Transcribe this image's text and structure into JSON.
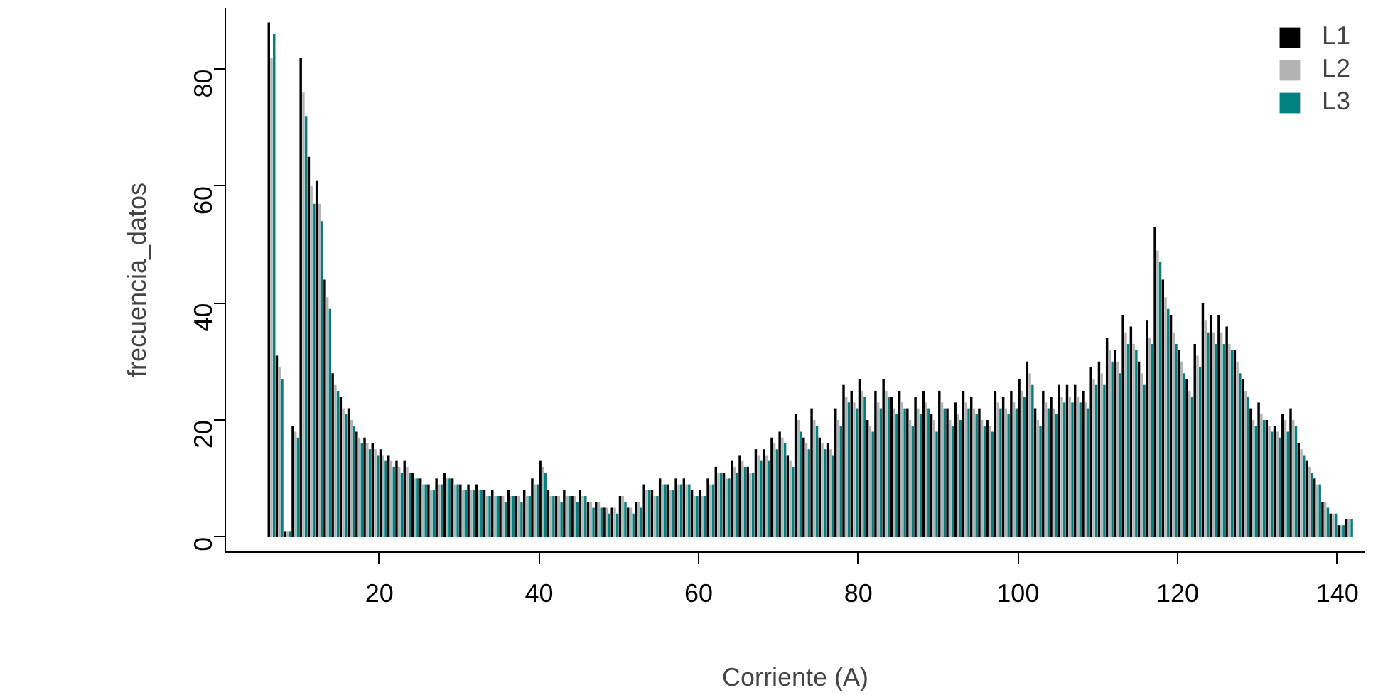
{
  "chart_data": {
    "type": "histogram",
    "xlabel": "Corriente (A)",
    "ylabel": "frecuencia_datos",
    "bins": [
      6,
      7,
      8,
      9,
      10,
      11,
      12,
      13,
      14,
      15,
      16,
      17,
      18,
      19,
      20,
      21,
      22,
      23,
      24,
      25,
      26,
      27,
      28,
      29,
      30,
      31,
      32,
      33,
      34,
      35,
      36,
      37,
      38,
      39,
      40,
      41,
      42,
      43,
      44,
      45,
      46,
      47,
      48,
      49,
      50,
      51,
      52,
      53,
      54,
      55,
      56,
      57,
      58,
      59,
      60,
      61,
      62,
      63,
      64,
      65,
      66,
      67,
      68,
      69,
      70,
      71,
      72,
      73,
      74,
      75,
      76,
      77,
      78,
      79,
      80,
      81,
      82,
      83,
      84,
      85,
      86,
      87,
      88,
      89,
      90,
      91,
      92,
      93,
      94,
      95,
      96,
      97,
      98,
      99,
      100,
      101,
      102,
      103,
      104,
      105,
      106,
      107,
      108,
      109,
      110,
      111,
      112,
      113,
      114,
      115,
      116,
      117,
      118,
      119,
      120,
      121,
      122,
      123,
      124,
      125,
      126,
      127,
      128,
      129,
      130,
      131,
      132,
      133,
      134,
      135,
      136,
      137,
      138,
      139,
      140,
      141,
      142
    ],
    "series": [
      {
        "name": "L1",
        "color": "#000000",
        "values": [
          88,
          31,
          1,
          19,
          82,
          65,
          61,
          44,
          28,
          24,
          22,
          18,
          17,
          16,
          15,
          14,
          13,
          13,
          11,
          10,
          9,
          10,
          11,
          10,
          9,
          9,
          9,
          8,
          8,
          7,
          8,
          7,
          8,
          10,
          13,
          8,
          7,
          8,
          7,
          8,
          6,
          6,
          5,
          5,
          7,
          5,
          6,
          9,
          8,
          10,
          9,
          10,
          10,
          8,
          8,
          10,
          12,
          11,
          13,
          14,
          12,
          15,
          15,
          17,
          18,
          14,
          21,
          17,
          22,
          17,
          16,
          22,
          26,
          25,
          27,
          20,
          25,
          27,
          24,
          25,
          22,
          24,
          25,
          21,
          25,
          22,
          23,
          25,
          24,
          22,
          20,
          25,
          24,
          25,
          27,
          30,
          22,
          25,
          24,
          26,
          26,
          26,
          25,
          29,
          30,
          34,
          32,
          38,
          36,
          30,
          37,
          53,
          44,
          38,
          32,
          27,
          33,
          40,
          38,
          38,
          36,
          32,
          27,
          22,
          23,
          20,
          19,
          21,
          22,
          16,
          13,
          10,
          6,
          4,
          2,
          3
        ]
      },
      {
        "name": "L2",
        "color": "#b3b3b3",
        "values": [
          82,
          29,
          1,
          18,
          76,
          60,
          57,
          41,
          26,
          22,
          20,
          17,
          16,
          15,
          14,
          13,
          12,
          12,
          10,
          9,
          8,
          9,
          10,
          9,
          8,
          8,
          8,
          7,
          7,
          7,
          7,
          7,
          7,
          9,
          12,
          7,
          7,
          7,
          7,
          7,
          6,
          6,
          5,
          5,
          7,
          5,
          6,
          8,
          7,
          9,
          8,
          9,
          9,
          7,
          7,
          9,
          11,
          10,
          12,
          13,
          11,
          14,
          14,
          16,
          17,
          13,
          20,
          16,
          20,
          16,
          15,
          20,
          24,
          23,
          25,
          19,
          23,
          25,
          22,
          23,
          20,
          22,
          23,
          20,
          23,
          20,
          21,
          23,
          22,
          20,
          19,
          23,
          22,
          23,
          25,
          28,
          20,
          23,
          22,
          24,
          24,
          24,
          23,
          27,
          28,
          32,
          30,
          35,
          33,
          28,
          34,
          49,
          41,
          35,
          30,
          25,
          31,
          37,
          35,
          35,
          33,
          30,
          25,
          20,
          21,
          19,
          18,
          20,
          20,
          15,
          12,
          9,
          6,
          4,
          2,
          3
        ]
      },
      {
        "name": "L3",
        "color": "#008080",
        "values": [
          86,
          27,
          1,
          17,
          72,
          57,
          54,
          39,
          25,
          21,
          19,
          16,
          15,
          14,
          13,
          12,
          11,
          11,
          10,
          9,
          8,
          9,
          10,
          9,
          8,
          8,
          8,
          7,
          7,
          6,
          7,
          6,
          7,
          9,
          11,
          7,
          6,
          7,
          6,
          7,
          5,
          5,
          4,
          4,
          6,
          4,
          5,
          8,
          7,
          9,
          8,
          9,
          9,
          7,
          7,
          9,
          11,
          10,
          11,
          12,
          11,
          13,
          13,
          15,
          16,
          12,
          18,
          15,
          19,
          15,
          14,
          19,
          23,
          22,
          24,
          18,
          22,
          24,
          21,
          22,
          19,
          21,
          22,
          18,
          22,
          19,
          20,
          22,
          21,
          19,
          18,
          22,
          21,
          22,
          24,
          26,
          19,
          22,
          21,
          23,
          23,
          23,
          22,
          26,
          26,
          30,
          28,
          33,
          32,
          26,
          33,
          47,
          39,
          33,
          28,
          24,
          29,
          35,
          33,
          33,
          32,
          28,
          24,
          19,
          20,
          18,
          17,
          18,
          19,
          14,
          11,
          9,
          5,
          4,
          2,
          3
        ]
      }
    ],
    "xlim": [
      0.7,
      143.5
    ],
    "ylim": [
      -2.6,
      90.5
    ],
    "xticks": [
      20,
      40,
      60,
      80,
      100,
      120,
      140
    ],
    "yticks": [
      0,
      20,
      40,
      60,
      80
    ],
    "grid": false,
    "legend": "top right"
  }
}
